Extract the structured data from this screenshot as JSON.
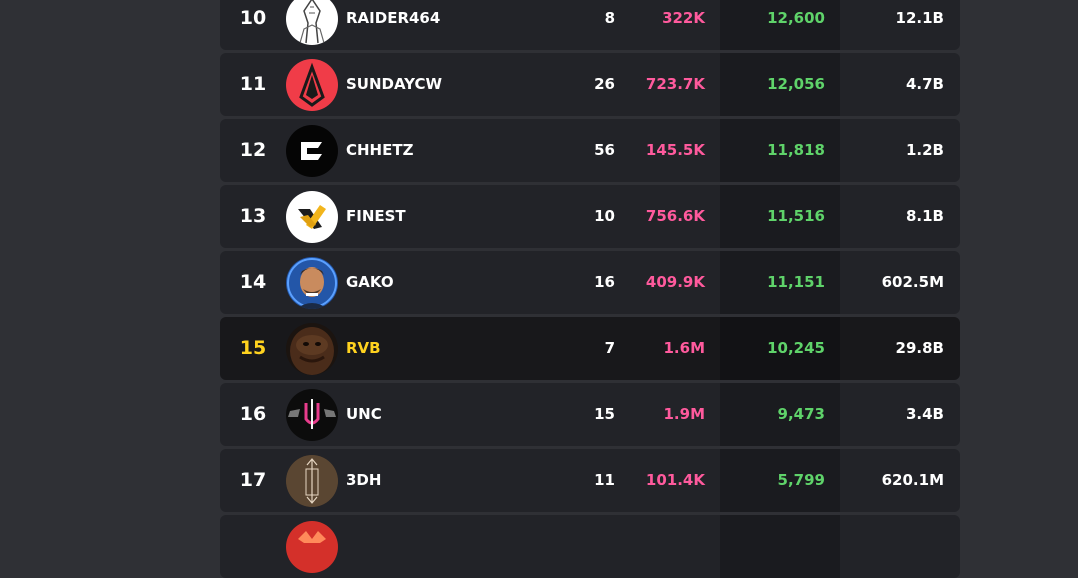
{
  "leaderboard": {
    "rows": [
      {
        "rank": "10",
        "player": "RAIDER464",
        "stat_a": "8",
        "stat_b": "322K",
        "stat_c": "12,600",
        "stat_d": "12.1B",
        "avatar": "raider-avatar-icon"
      },
      {
        "rank": "11",
        "player": "SUNDAYCW",
        "stat_a": "26",
        "stat_b": "723.7K",
        "stat_c": "12,056",
        "stat_d": "4.7B",
        "avatar": "sundaycw-logo-icon"
      },
      {
        "rank": "12",
        "player": "CHHETZ",
        "stat_a": "56",
        "stat_b": "145.5K",
        "stat_c": "11,818",
        "stat_d": "1.2B",
        "avatar": "chhetz-logo-icon"
      },
      {
        "rank": "13",
        "player": "FINEST",
        "stat_a": "10",
        "stat_b": "756.6K",
        "stat_c": "11,516",
        "stat_d": "8.1B",
        "avatar": "finest-logo-icon"
      },
      {
        "rank": "14",
        "player": "GAKO",
        "stat_a": "16",
        "stat_b": "409.9K",
        "stat_c": "11,151",
        "stat_d": "602.5M",
        "avatar": "gako-avatar-icon"
      },
      {
        "rank": "15",
        "player": "RVB",
        "stat_a": "7",
        "stat_b": "1.6M",
        "stat_c": "10,245",
        "stat_d": "29.8B",
        "avatar": "rvb-avatar-icon",
        "highlighted": true
      },
      {
        "rank": "16",
        "player": "UNC",
        "stat_a": "15",
        "stat_b": "1.9M",
        "stat_c": "9,473",
        "stat_d": "3.4B",
        "avatar": "unc-logo-icon"
      },
      {
        "rank": "17",
        "player": "3DH",
        "stat_a": "11",
        "stat_b": "101.4K",
        "stat_c": "5,799",
        "stat_d": "620.1M",
        "avatar": "3dh-logo-icon"
      }
    ]
  },
  "colors": {
    "page_bg": "#2f3035",
    "row_bg": "#222328",
    "row_highlight_bg": "#18181b",
    "highlight_text": "#ffd21f",
    "pink_stat": "#ff5a9d",
    "green_stat": "#5fd36a"
  }
}
